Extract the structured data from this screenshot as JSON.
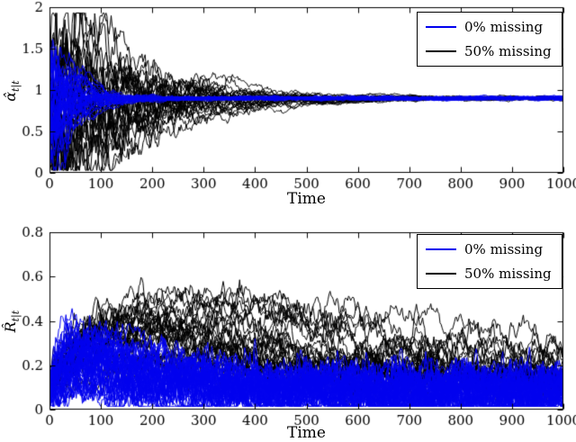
{
  "figure": {
    "background": "#ffffff",
    "blue": "#0000ee",
    "black": "#000000"
  },
  "chart_data": [
    {
      "type": "line",
      "name": "alpha-filtered-estimate-plot",
      "title": "",
      "xlabel": "Time",
      "ylabel_main": "α̂",
      "ylabel_sub": "t|t",
      "xlim": [
        0,
        1000
      ],
      "ylim": [
        0,
        2
      ],
      "xticks": [
        0,
        100,
        200,
        300,
        400,
        500,
        600,
        700,
        800,
        900,
        1000
      ],
      "xtick_labels": [
        "0",
        "100",
        "200",
        "300",
        "400",
        "500",
        "600",
        "700",
        "800",
        "900",
        "1000"
      ],
      "yticks": [
        0,
        0.5,
        1,
        1.5,
        2
      ],
      "ytick_labels": [
        "0",
        "0.5",
        "1",
        "1.5",
        "2"
      ],
      "grid": false,
      "legend_position": "top-right",
      "legend": [
        {
          "label": "0% missing",
          "color": "#0000ee"
        },
        {
          "label": "50% missing",
          "color": "#000000"
        }
      ],
      "converged_value": 0.9,
      "description": "Many Monte-Carlo trajectories of filtered estimate; blue (0% missing) spreads 0.2-1.6 for t<150 then converges to 0.9; black (50% missing) spreads 0.1-1.75 until t~300 and converges to 0.9 by t~550.",
      "ensembles": [
        {
          "name": "50% missing",
          "color": "#000000",
          "model": "ou",
          "n_paths": 28,
          "seed": 101,
          "init": [
            0.15,
            1.7
          ],
          "target": 0.9,
          "theta": 0.045,
          "sigma0": 0.22,
          "sigma_decay": 150,
          "sigma_end": 0.003,
          "clip": [
            0.03,
            1.93
          ]
        },
        {
          "name": "0% missing",
          "color": "#0000ee",
          "model": "ou",
          "n_paths": 42,
          "seed": 202,
          "init": [
            0.2,
            1.6
          ],
          "target": 0.9,
          "theta": 0.07,
          "sigma0": 0.15,
          "sigma_decay": 40,
          "sigma_end": 0.004,
          "clip": [
            0.03,
            1.9
          ]
        }
      ]
    },
    {
      "type": "line",
      "name": "R-filtered-estimate-plot",
      "title": "",
      "xlabel": "Time",
      "ylabel_main": "R̂",
      "ylabel_sub": "t|t",
      "xlim": [
        0,
        1000
      ],
      "ylim": [
        0,
        0.8
      ],
      "xticks": [
        0,
        100,
        200,
        300,
        400,
        500,
        600,
        700,
        800,
        900,
        1000
      ],
      "xtick_labels": [
        "0",
        "100",
        "200",
        "300",
        "400",
        "500",
        "600",
        "700",
        "800",
        "900",
        "1000"
      ],
      "yticks": [
        0,
        0.2,
        0.4,
        0.6,
        0.8
      ],
      "ytick_labels": [
        "0",
        "0.2",
        "0.4",
        "0.6",
        "0.8"
      ],
      "grid": false,
      "legend_position": "top-right",
      "legend": [
        {
          "label": "0% missing",
          "color": "#0000ee"
        },
        {
          "label": "50% missing",
          "color": "#000000"
        }
      ],
      "converged_value": 0.12,
      "description": "Blue (0% missing) forms dense band 0.02-0.2 with early peaks to ~0.38; black (50% missing) humps up to ~0.55 between t=100-350, decaying to band 0.08-0.17 by t~800.",
      "ensembles": [
        {
          "name": "50% missing",
          "color": "#000000",
          "model": "hump",
          "n_paths": 30,
          "seed": 303,
          "base": [
            0.09,
            0.15
          ],
          "amp": [
            0.06,
            0.4
          ],
          "tp": [
            70,
            350
          ],
          "theta": 0.12,
          "sigma": 0.02,
          "clip": [
            0.02,
            0.78
          ]
        },
        {
          "name": "0% missing",
          "color": "#0000ee",
          "model": "hump",
          "n_paths": 45,
          "seed": 404,
          "base": [
            0.05,
            0.12
          ],
          "amp": [
            0,
            0.25
          ],
          "tp": [
            25,
            110
          ],
          "theta": 0.15,
          "sigma": 0.028,
          "clip": [
            0.015,
            0.78
          ]
        }
      ]
    }
  ]
}
